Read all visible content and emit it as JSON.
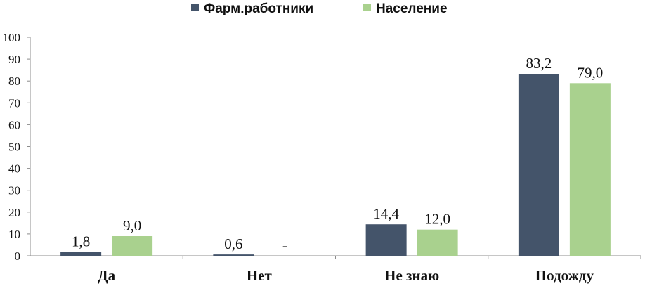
{
  "chart_data": {
    "type": "bar",
    "categories": [
      "Да",
      "Нет",
      "Не знаю",
      "Подожду"
    ],
    "series": [
      {
        "name": "Фарм.работники",
        "color": "#44546a",
        "values": [
          1.8,
          0.6,
          14.4,
          83.2
        ],
        "labels": [
          "1,8",
          "0,6",
          "14,4",
          "83,2"
        ]
      },
      {
        "name": "Население",
        "color": "#a9d18e",
        "values": [
          9.0,
          0,
          12.0,
          79.0
        ],
        "labels": [
          "9,0",
          "-",
          "12,0",
          "79,0"
        ]
      }
    ],
    "ylim": [
      0,
      100
    ],
    "yticks": [
      "0",
      "10",
      "20",
      "30",
      "40",
      "50",
      "60",
      "70",
      "80",
      "90",
      "100"
    ],
    "grid": false,
    "legend_position": "top-center"
  }
}
